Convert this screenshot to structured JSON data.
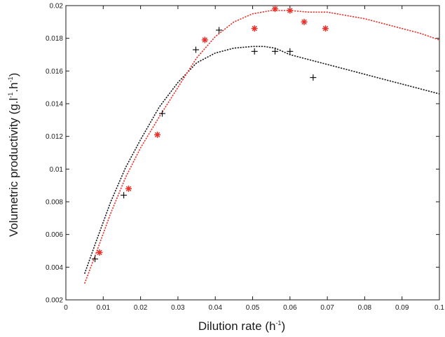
{
  "chart_data": {
    "type": "scatter",
    "xlabel": "Dilution rate (h",
    "xlabel_sup": "-1",
    "xlabel_end": ")",
    "ylabel": "Volumetric productivity (g.l",
    "ylabel_sup1": "-1",
    "ylabel_mid": ".h",
    "ylabel_sup2": "-1",
    "ylabel_end": ")",
    "xlim": [
      0,
      0.1
    ],
    "ylim": [
      0.002,
      0.02
    ],
    "x_ticks": [
      0,
      0.01,
      0.02,
      0.03,
      0.04,
      0.05,
      0.06,
      0.07,
      0.08,
      0.09,
      0.1
    ],
    "x_tick_labels": [
      "0",
      "0.01",
      "0.02",
      "0.03",
      "0.04",
      "0.05",
      "0.06",
      "0.07",
      "0.08",
      "0.09",
      "0.1"
    ],
    "y_ticks": [
      0.002,
      0.004,
      0.006,
      0.008,
      0.01,
      0.012,
      0.014,
      0.016,
      0.018,
      0.02
    ],
    "y_tick_labels": [
      "0.002",
      "0.004",
      "0.006",
      "0.008",
      "0.01",
      "0.012",
      "0.014",
      "0.016",
      "0.018",
      "0.02"
    ],
    "grid": false,
    "series": [
      {
        "kind": "points",
        "marker": "plus",
        "color": "#000000",
        "x": [
          0.0078,
          0.0155,
          0.0258,
          0.0348,
          0.041,
          0.0505,
          0.056,
          0.06,
          0.0662
        ],
        "y": [
          0.0045,
          0.0084,
          0.0134,
          0.0173,
          0.0185,
          0.0172,
          0.0172,
          0.0172,
          0.0156
        ]
      },
      {
        "kind": "points",
        "marker": "asterisk",
        "color": "#e8312a",
        "x": [
          0.009,
          0.0168,
          0.0245,
          0.0372,
          0.0505,
          0.056,
          0.06,
          0.0638,
          0.0695
        ],
        "y": [
          0.0049,
          0.0088,
          0.0121,
          0.0179,
          0.0186,
          0.0198,
          0.0197,
          0.019,
          0.0186
        ]
      },
      {
        "kind": "line",
        "style": "dotted",
        "color": "#1a1a1a",
        "x": [
          0.005,
          0.008,
          0.012,
          0.016,
          0.02,
          0.025,
          0.03,
          0.035,
          0.04,
          0.045,
          0.05,
          0.053,
          0.056,
          0.06,
          0.065,
          0.07,
          0.075,
          0.08,
          0.085,
          0.09,
          0.095,
          0.1
        ],
        "y": [
          0.0036,
          0.0055,
          0.008,
          0.0101,
          0.0118,
          0.0138,
          0.0153,
          0.0165,
          0.0171,
          0.0174,
          0.0175,
          0.0175,
          0.0174,
          0.017,
          0.0167,
          0.0164,
          0.0161,
          0.0158,
          0.0155,
          0.0152,
          0.0149,
          0.0146
        ]
      },
      {
        "kind": "line",
        "style": "dotted",
        "color": "#e8312a",
        "x": [
          0.005,
          0.008,
          0.012,
          0.016,
          0.02,
          0.025,
          0.03,
          0.035,
          0.04,
          0.045,
          0.05,
          0.055,
          0.06,
          0.065,
          0.07,
          0.075,
          0.08,
          0.085,
          0.09,
          0.095,
          0.1
        ],
        "y": [
          0.003,
          0.0048,
          0.0073,
          0.0095,
          0.0113,
          0.0132,
          0.015,
          0.0168,
          0.0181,
          0.019,
          0.0195,
          0.0197,
          0.0197,
          0.0196,
          0.0196,
          0.0194,
          0.0192,
          0.0189,
          0.0186,
          0.0183,
          0.0179
        ]
      }
    ]
  }
}
